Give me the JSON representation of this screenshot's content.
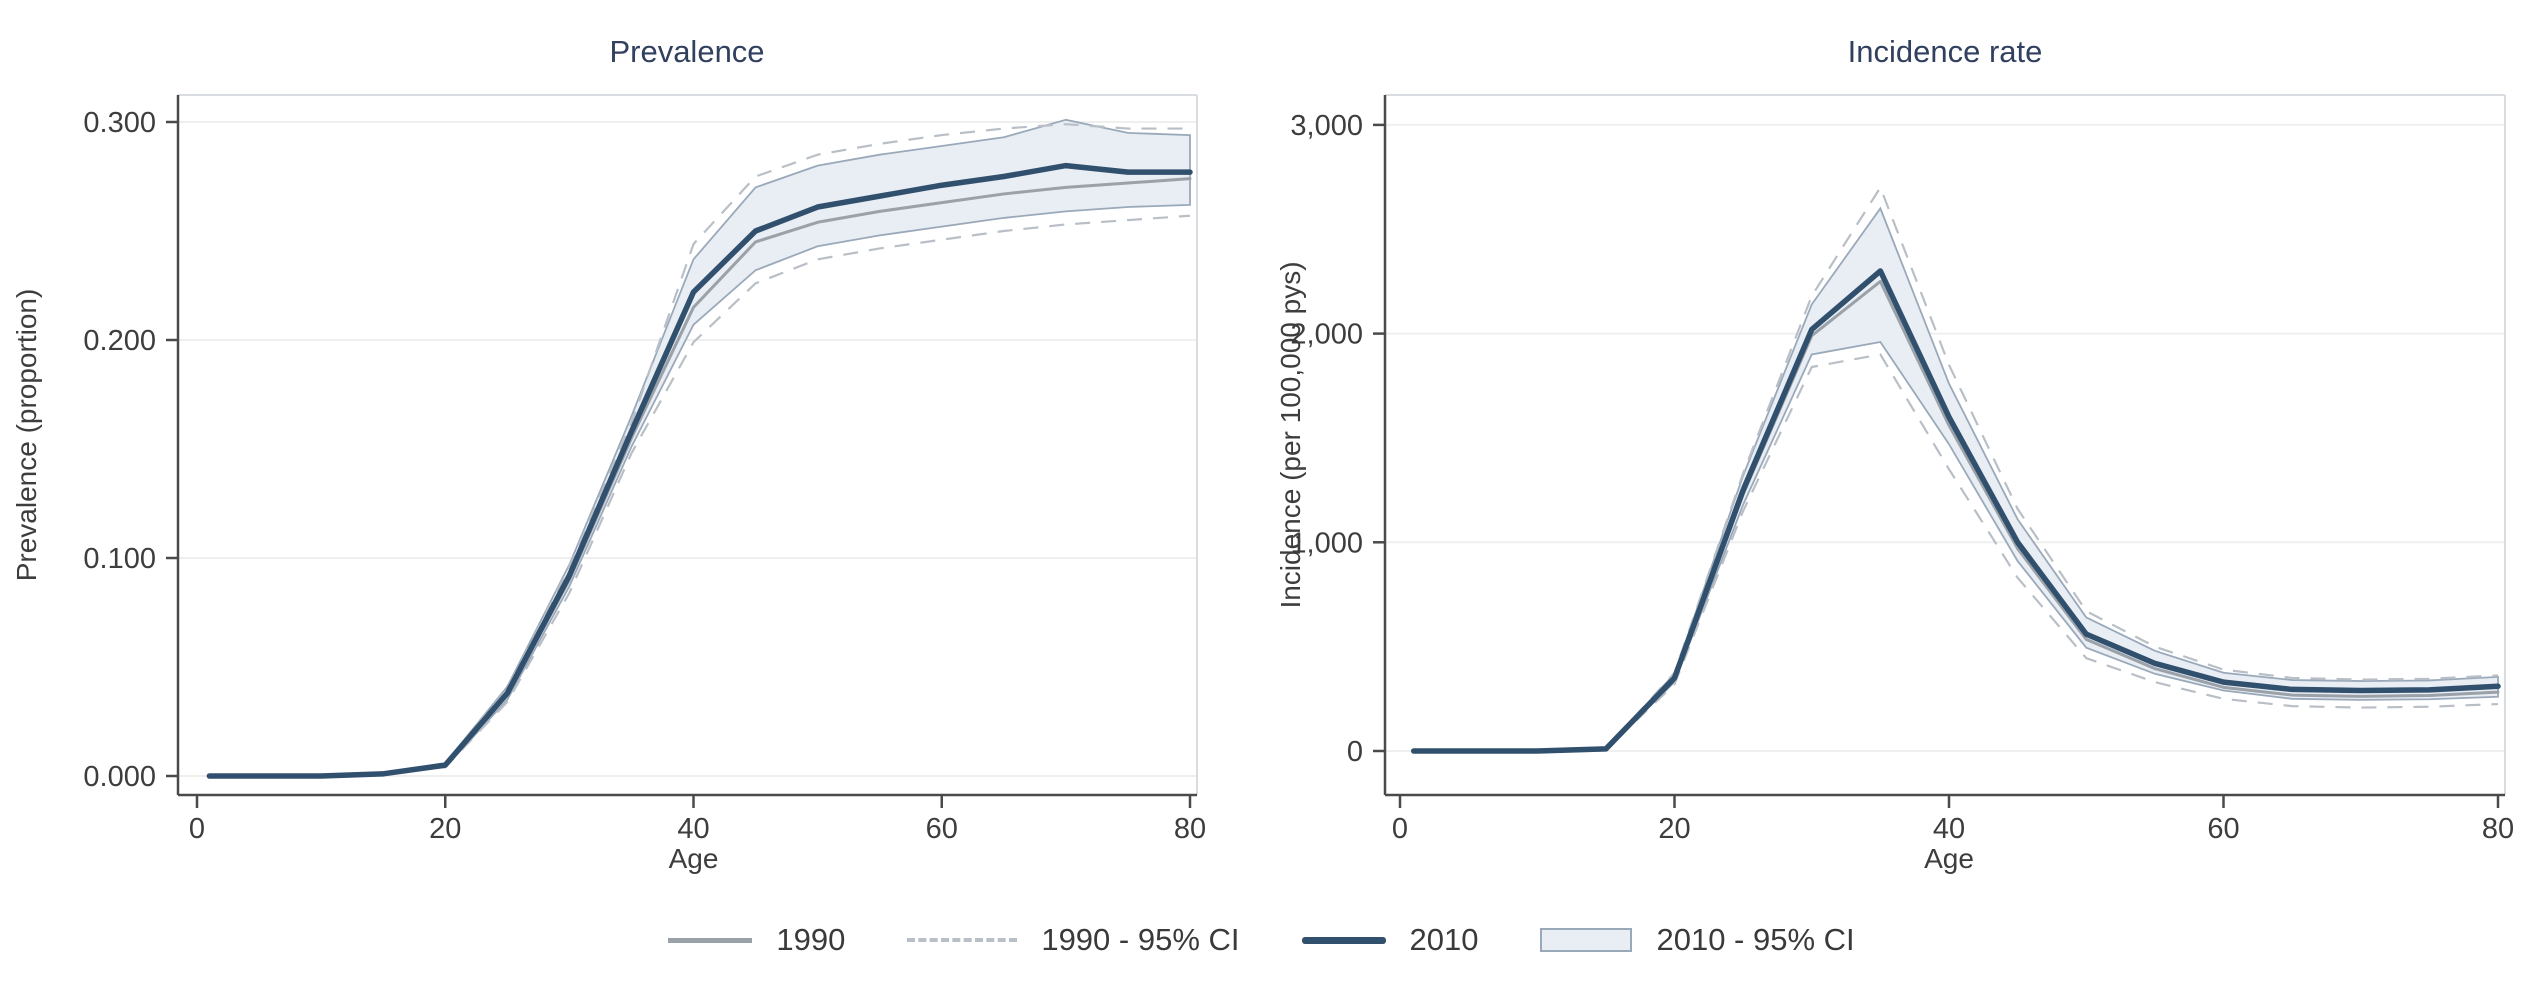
{
  "figure": {
    "background": "#ffffff",
    "text_color": "#3d3d3d",
    "title_color": "#31405f",
    "axis_color": "#4a4a4a",
    "frame_color": "#d9dde2",
    "grid_color": "#efefef"
  },
  "legend": {
    "position": "bottom-center",
    "items": [
      {
        "label": "1990",
        "swatch": "solid-line",
        "color": "#9aa1a8"
      },
      {
        "label": "1990 - 95% CI",
        "swatch": "dashed-line",
        "color": "#b9bfc6"
      },
      {
        "label": "2010",
        "swatch": "thick-solid-line",
        "color": "#31506e"
      },
      {
        "label": "2010 - 95% CI",
        "swatch": "filled-box",
        "fill": "#e9edf4",
        "border": "#9aa9ba"
      }
    ]
  },
  "chart_data": [
    {
      "type": "line",
      "title": "Prevalence",
      "xlabel": "Age",
      "ylabel": "Prevalence (proportion)",
      "xlim": [
        0,
        80
      ],
      "ylim": [
        0,
        0.3
      ],
      "grid": true,
      "xticks": [
        0,
        20,
        40,
        60,
        80
      ],
      "ytick_values": [
        0,
        0.1,
        0.2,
        0.3
      ],
      "ytick_labels": [
        "0.000",
        "0.100",
        "0.200",
        "0.300"
      ],
      "x": [
        1,
        5,
        10,
        15,
        20,
        25,
        30,
        35,
        40,
        45,
        50,
        55,
        60,
        65,
        70,
        75,
        80
      ],
      "series": [
        {
          "name": "2010 - 95% CI",
          "role": "band",
          "fill": "#e9edf4",
          "stroke": "#9aa9ba",
          "lower": [
            0,
            0,
            0,
            0.001,
            0.004,
            0.035,
            0.087,
            0.151,
            0.207,
            0.232,
            0.243,
            0.248,
            0.252,
            0.256,
            0.259,
            0.261,
            0.262
          ],
          "upper": [
            0,
            0,
            0,
            0.001,
            0.006,
            0.041,
            0.097,
            0.165,
            0.237,
            0.27,
            0.28,
            0.285,
            0.289,
            0.293,
            0.301,
            0.295,
            0.294
          ]
        },
        {
          "name": "1990 - 95% CI",
          "role": "dashed-pair",
          "stroke": "#b9bfc6",
          "lower": [
            0,
            0,
            0,
            0.001,
            0.004,
            0.034,
            0.084,
            0.148,
            0.199,
            0.226,
            0.237,
            0.242,
            0.246,
            0.25,
            0.253,
            0.255,
            0.257
          ],
          "upper": [
            0,
            0,
            0,
            0.001,
            0.006,
            0.04,
            0.096,
            0.162,
            0.244,
            0.275,
            0.285,
            0.29,
            0.294,
            0.297,
            0.299,
            0.297,
            0.297
          ]
        },
        {
          "name": "1990",
          "role": "line",
          "stroke": "#9aa1a8",
          "width": 3,
          "values": [
            0,
            0,
            0,
            0.001,
            0.005,
            0.037,
            0.09,
            0.155,
            0.215,
            0.245,
            0.254,
            0.259,
            0.263,
            0.267,
            0.27,
            0.272,
            0.274
          ]
        },
        {
          "name": "2010",
          "role": "line",
          "stroke": "#31506e",
          "width": 5.5,
          "values": [
            0,
            0,
            0,
            0.001,
            0.005,
            0.038,
            0.092,
            0.158,
            0.222,
            0.25,
            0.261,
            0.266,
            0.271,
            0.275,
            0.28,
            0.277,
            0.277
          ]
        }
      ]
    },
    {
      "type": "line",
      "title": "Incidence rate",
      "xlabel": "Age",
      "ylabel": "Incidence (per 100,000 pys)",
      "xlim": [
        0,
        80
      ],
      "ylim": [
        0,
        3000
      ],
      "grid": true,
      "xticks": [
        0,
        20,
        40,
        60,
        80
      ],
      "ytick_values": [
        0,
        1000,
        2000,
        3000
      ],
      "ytick_labels": [
        "0",
        "1,000",
        "2,000",
        "3,000"
      ],
      "x": [
        1,
        5,
        10,
        15,
        20,
        25,
        30,
        35,
        40,
        45,
        50,
        55,
        60,
        65,
        70,
        75,
        80
      ],
      "series": [
        {
          "name": "2010 - 95% CI",
          "role": "band",
          "fill": "#e9edf4",
          "stroke": "#9aa9ba",
          "lower": [
            0,
            0,
            0,
            8,
            330,
            1180,
            1900,
            1960,
            1470,
            910,
            495,
            370,
            290,
            250,
            245,
            248,
            260
          ],
          "upper": [
            0,
            0,
            0,
            12,
            370,
            1320,
            2140,
            2600,
            1760,
            1110,
            640,
            480,
            375,
            340,
            335,
            338,
            355
          ]
        },
        {
          "name": "1990 - 95% CI",
          "role": "dashed-pair",
          "stroke": "#b9bfc6",
          "lower": [
            0,
            0,
            0,
            7,
            320,
            1150,
            1840,
            1900,
            1350,
            830,
            445,
            330,
            250,
            215,
            208,
            212,
            225
          ],
          "upper": [
            0,
            0,
            0,
            11,
            375,
            1330,
            2180,
            2700,
            1850,
            1160,
            670,
            500,
            390,
            350,
            342,
            346,
            362
          ]
        },
        {
          "name": "1990",
          "role": "line",
          "stroke": "#9aa1a8",
          "width": 3,
          "values": [
            0,
            0,
            0,
            9,
            345,
            1230,
            1990,
            2250,
            1560,
            970,
            535,
            395,
            305,
            268,
            262,
            266,
            282
          ]
        },
        {
          "name": "2010",
          "role": "line",
          "stroke": "#31506e",
          "width": 5.5,
          "values": [
            0,
            0,
            0,
            10,
            350,
            1250,
            2020,
            2300,
            1600,
            1000,
            560,
            420,
            330,
            295,
            290,
            293,
            310
          ]
        }
      ]
    }
  ]
}
